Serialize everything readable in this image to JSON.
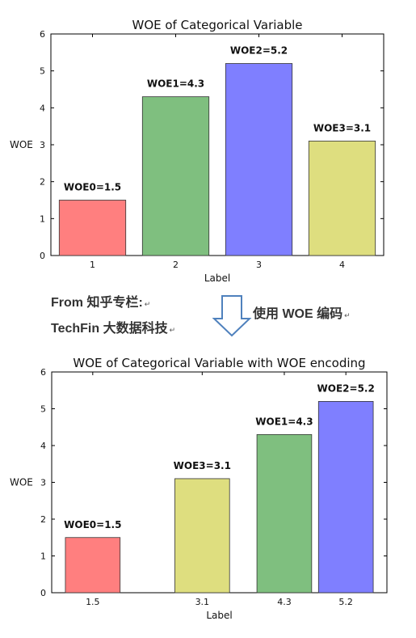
{
  "chart_data": [
    {
      "type": "bar",
      "title": "WOE of Categorical Variable",
      "xlabel": "Label",
      "ylabel": "WOE",
      "ylim": [
        0,
        6
      ],
      "yticks": [
        "0",
        "1",
        "2",
        "3",
        "4",
        "5",
        "6"
      ],
      "categories": [
        "1",
        "2",
        "3",
        "4"
      ],
      "x": [
        1,
        2,
        3,
        4
      ],
      "xlim": [
        0.5,
        4.5
      ],
      "bar_width": 0.8,
      "values": [
        1.5,
        4.3,
        5.2,
        3.1
      ],
      "colors": [
        "#ff7f7f",
        "#7fbf7f",
        "#7f7fff",
        "#dede7f"
      ],
      "bar_labels": [
        "WOE0=1.5",
        "WOE1=4.3",
        "WOE2=5.2",
        "WOE3=3.1"
      ],
      "grid": false
    },
    {
      "type": "bar",
      "title": "WOE of Categorical Variable with WOE encoding",
      "xlabel": "Label",
      "ylabel": "WOE",
      "ylim": [
        0,
        6
      ],
      "yticks": [
        "0",
        "1",
        "2",
        "3",
        "4",
        "5",
        "6"
      ],
      "categories": [
        "1.5",
        "3.1",
        "4.3",
        "5.2"
      ],
      "x": [
        1.5,
        3.1,
        4.3,
        5.2
      ],
      "xlim": [
        0.9,
        5.8
      ],
      "bar_width": 0.8,
      "values": [
        1.5,
        3.1,
        4.3,
        5.2
      ],
      "colors": [
        "#ff7f7f",
        "#dede7f",
        "#7fbf7f",
        "#7f7fff"
      ],
      "bar_labels": [
        "WOE0=1.5",
        "WOE3=3.1",
        "WOE1=4.3",
        "WOE2=5.2"
      ],
      "grid": false
    }
  ],
  "notes": {
    "source_line1": "From  知乎专栏:",
    "source_line2": "TechFin 大数据科技",
    "encoding_label": "使用 WOE 编码",
    "paragraph_mark": "↵"
  },
  "arrow": {
    "icon": "down-arrow-icon",
    "color": "#4f81bd"
  }
}
